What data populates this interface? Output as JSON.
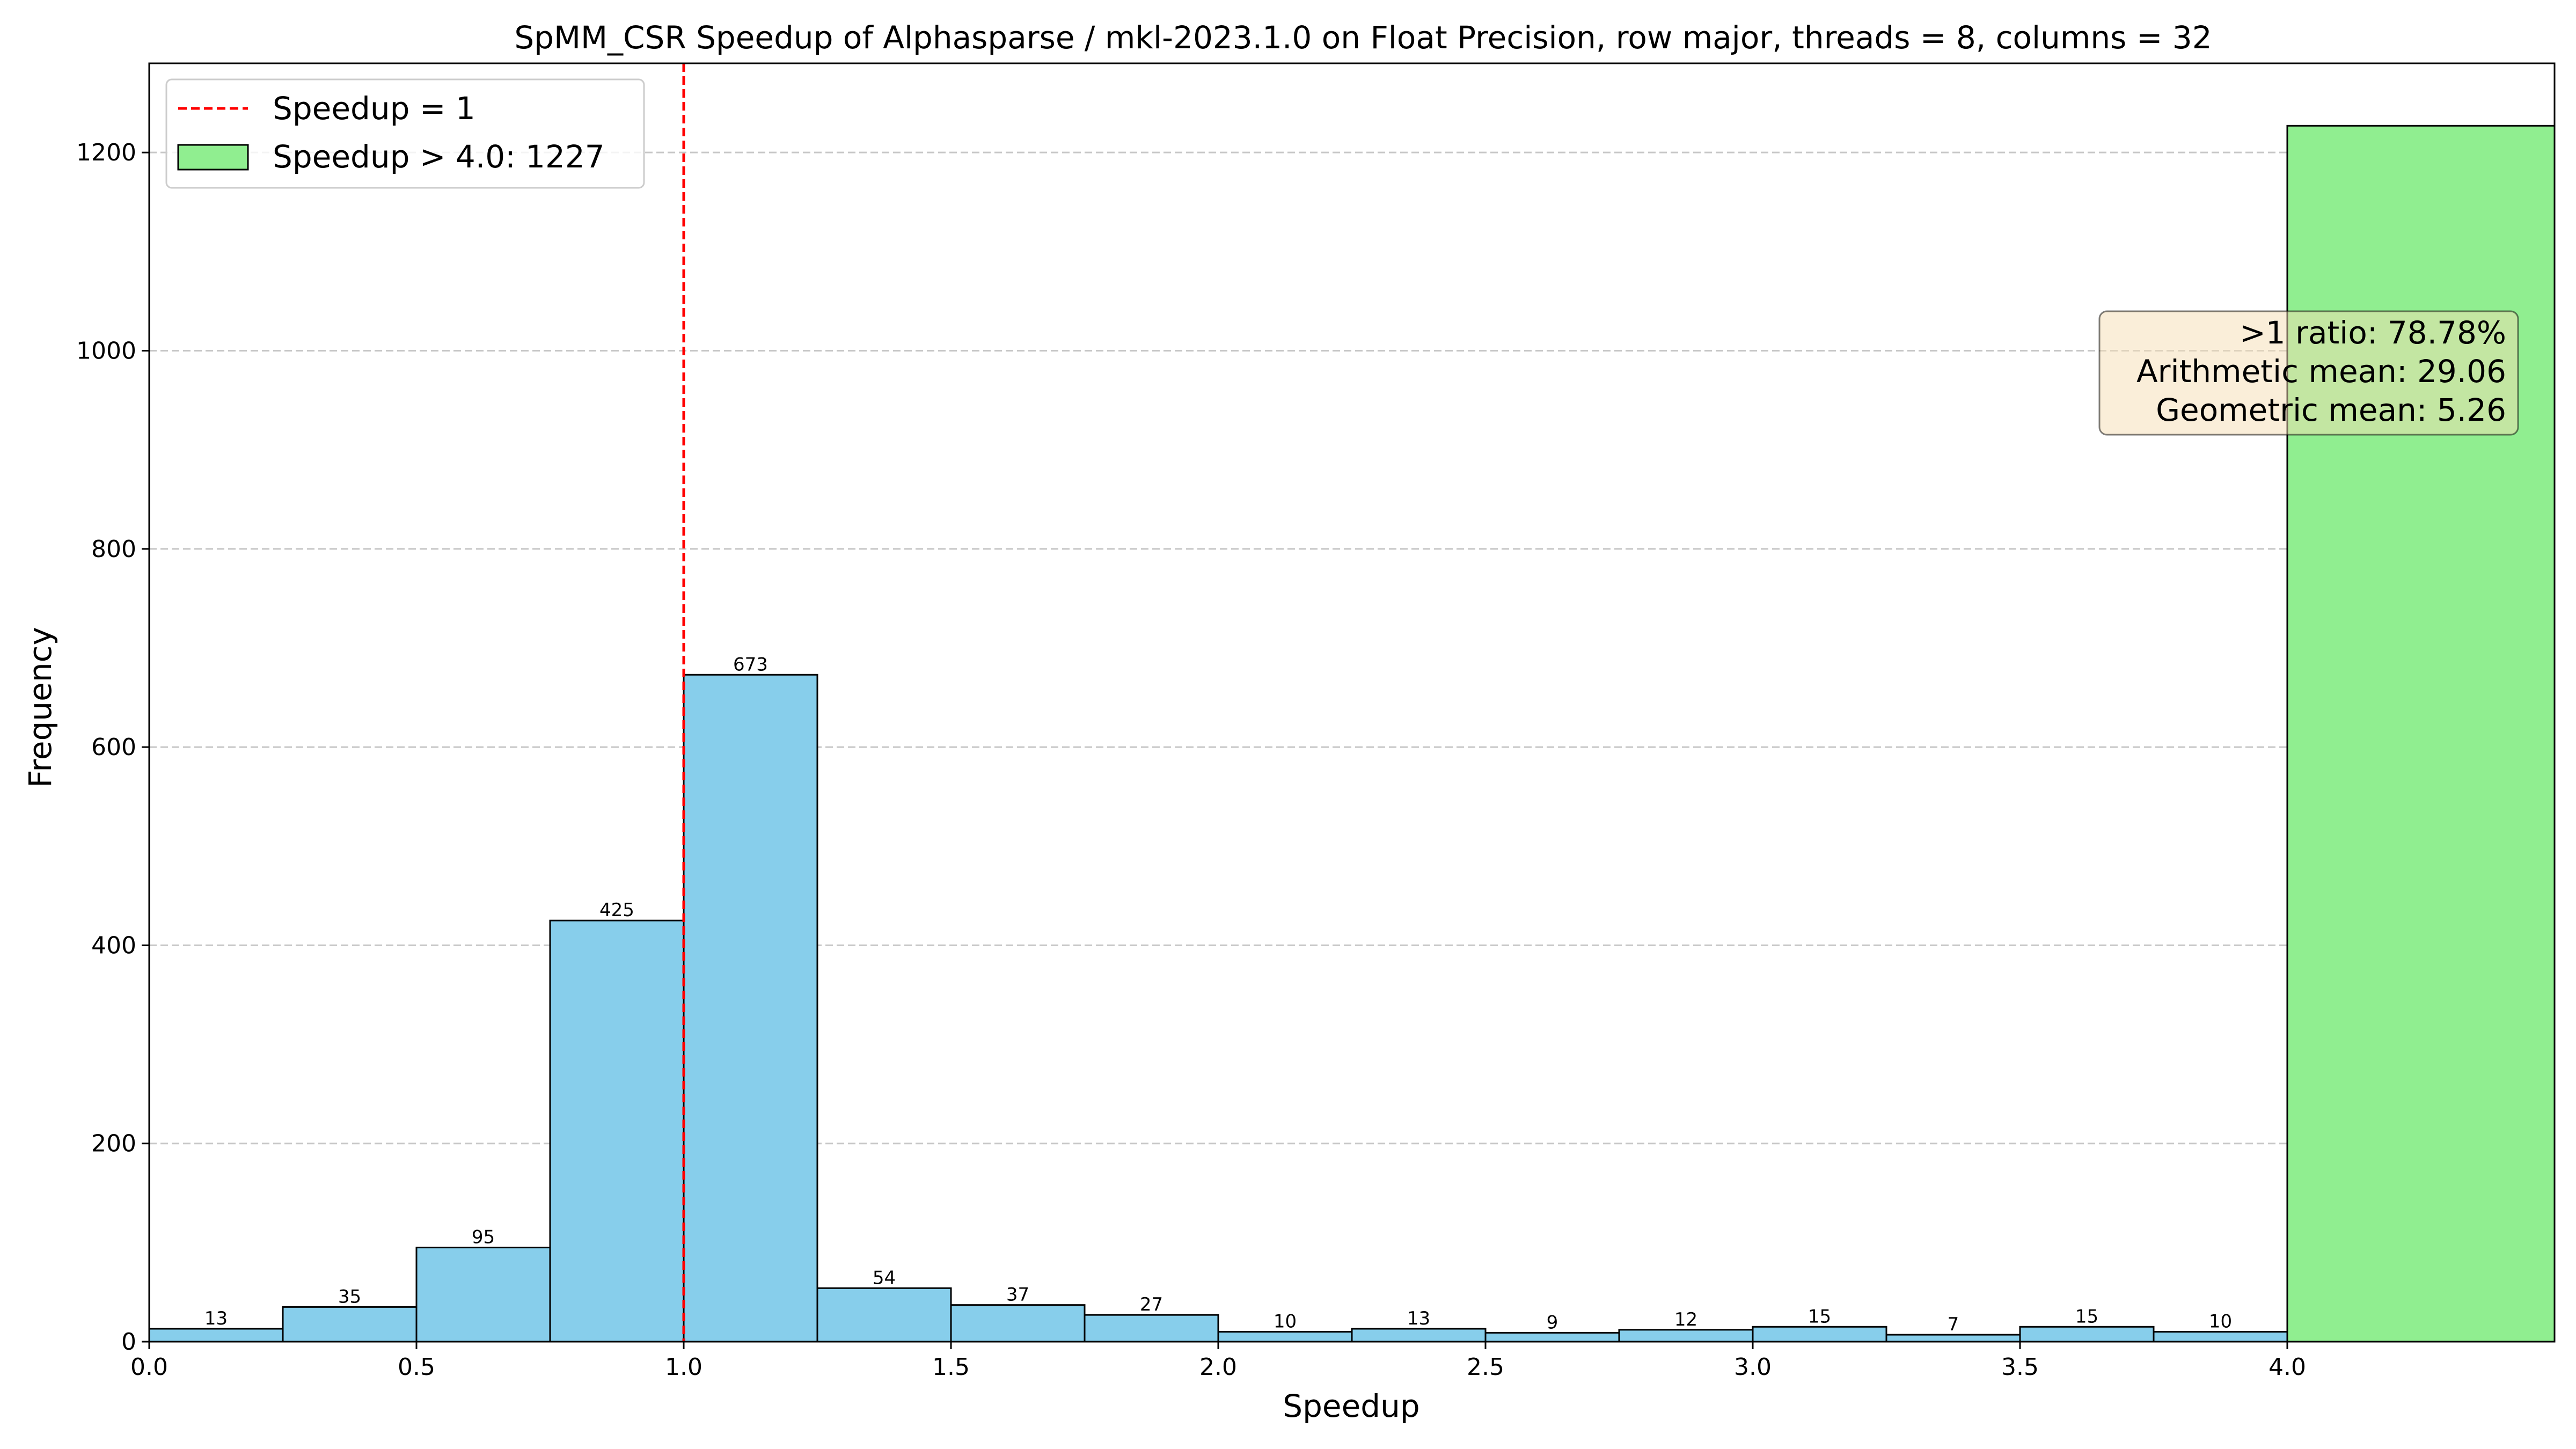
{
  "chart_data": {
    "type": "bar",
    "title": "SpMM_CSR Speedup of Alphasparse / mkl-2023.1.0 on Float Precision, row major, threads = 8, columns = 32",
    "xlabel": "Speedup",
    "ylabel": "Frequency",
    "xlim": [
      0,
      4.5
    ],
    "ylim": [
      0,
      1290
    ],
    "xticks": [
      "0.0",
      "0.5",
      "1.0",
      "1.5",
      "2.0",
      "2.5",
      "3.0",
      "3.5",
      "4.0"
    ],
    "xtick_values": [
      0,
      0.5,
      1,
      1.5,
      2,
      2.5,
      3,
      3.5,
      4
    ],
    "yticks": [
      "0",
      "200",
      "400",
      "600",
      "800",
      "1000",
      "1200"
    ],
    "ytick_values": [
      0,
      200,
      400,
      600,
      800,
      1000,
      1200
    ],
    "grid": "y-dashed",
    "bins": [
      {
        "x0": 0.0,
        "x1": 0.25,
        "value": 13,
        "label": "13"
      },
      {
        "x0": 0.25,
        "x1": 0.5,
        "value": 35,
        "label": "35"
      },
      {
        "x0": 0.5,
        "x1": 0.75,
        "value": 95,
        "label": "95"
      },
      {
        "x0": 0.75,
        "x1": 1.0,
        "value": 425,
        "label": "425"
      },
      {
        "x0": 1.0,
        "x1": 1.25,
        "value": 673,
        "label": "673"
      },
      {
        "x0": 1.25,
        "x1": 1.5,
        "value": 54,
        "label": "54"
      },
      {
        "x0": 1.5,
        "x1": 1.75,
        "value": 37,
        "label": "37"
      },
      {
        "x0": 1.75,
        "x1": 2.0,
        "value": 27,
        "label": "27"
      },
      {
        "x0": 2.0,
        "x1": 2.25,
        "value": 10,
        "label": "10"
      },
      {
        "x0": 2.25,
        "x1": 2.5,
        "value": 13,
        "label": "13"
      },
      {
        "x0": 2.5,
        "x1": 2.75,
        "value": 9,
        "label": "9"
      },
      {
        "x0": 2.75,
        "x1": 3.0,
        "value": 12,
        "label": "12"
      },
      {
        "x0": 3.0,
        "x1": 3.25,
        "value": 15,
        "label": "15"
      },
      {
        "x0": 3.25,
        "x1": 3.5,
        "value": 7,
        "label": "7"
      },
      {
        "x0": 3.5,
        "x1": 3.75,
        "value": 15,
        "label": "15"
      },
      {
        "x0": 3.75,
        "x1": 4.0,
        "value": 10,
        "label": "10"
      }
    ],
    "overflow_bin": {
      "x0": 4.0,
      "x1": 4.5,
      "value": 1227
    },
    "reference_line": {
      "x": 1.0
    },
    "legend": {
      "placement": "upper-left",
      "entries": [
        {
          "label": "Speedup = 1",
          "kind": "dashed-line",
          "color": "#ff0000"
        },
        {
          "label": "Speedup > 4.0: 1227",
          "kind": "patch",
          "color": "#90ee90"
        }
      ]
    },
    "stats_box": {
      "placement": "upper-right",
      "lines": [
        ">1 ratio: 78.78%",
        "Arithmetic mean: 29.06",
        "Geometric mean: 5.26"
      ]
    },
    "colors": {
      "bar": "#87ceeb",
      "overflow": "#90ee90",
      "reference": "#ff0000",
      "stats_bg": "#f5deb3"
    }
  }
}
